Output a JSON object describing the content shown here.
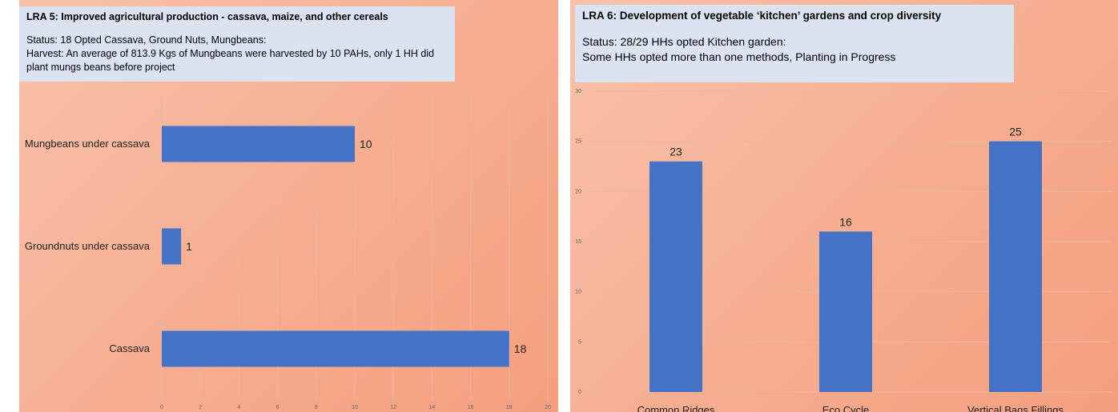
{
  "chart_data": [
    {
      "type": "bar",
      "orientation": "horizontal",
      "title": "LRA 5: Improved agricultural production - cassava, maize, and other cereals",
      "status_lines": [
        "Status: 18 Opted Cassava, Ground Nuts, Mungbeans:",
        "Harvest: An average of 813.9 Kgs of Mungbeans were harvested by 10 PAHs, only 1 HH did",
        "plant mungs beans before project"
      ],
      "categories": [
        "Mungbeans under cassava",
        "Groundnuts under cassava",
        "Cassava"
      ],
      "values": [
        10,
        1,
        18
      ],
      "xlim": [
        0,
        20
      ],
      "xticks": [
        0,
        2,
        4,
        6,
        8,
        10,
        12,
        14,
        16,
        18,
        20
      ],
      "grid": true,
      "bar_color": "#4472c4"
    },
    {
      "type": "bar",
      "orientation": "vertical",
      "title": "LRA 6: Development of vegetable ‘kitchen’ gardens and crop diversity",
      "status_lines": [
        "Status: 28/29 HHs opted Kitchen garden:",
        "Some HHs opted more than one methods, Planting in Progress"
      ],
      "categories": [
        "Common Ridges",
        "Eco Cycle",
        "Vertical Bags Fillings"
      ],
      "values": [
        23,
        16,
        25
      ],
      "ylim": [
        0,
        30
      ],
      "yticks": [
        0,
        5,
        10,
        15,
        20,
        25,
        30
      ],
      "grid": true,
      "bar_color": "#4472c4"
    }
  ]
}
